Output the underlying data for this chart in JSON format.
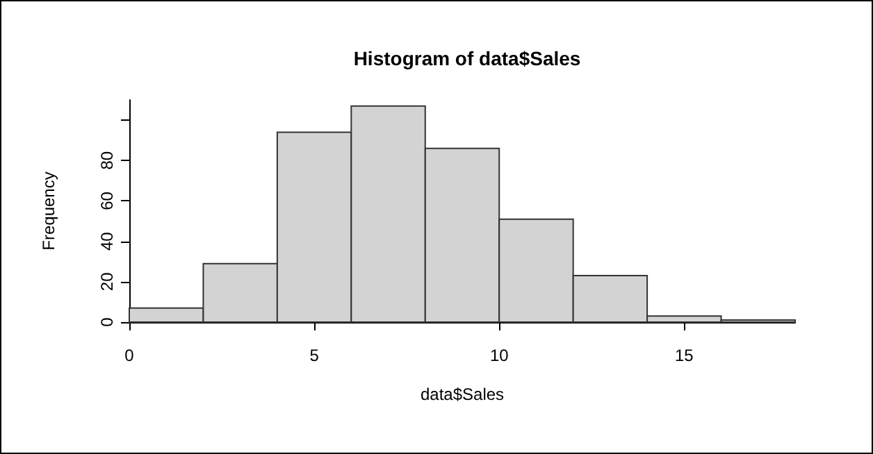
{
  "chart_data": {
    "type": "histogram",
    "title": "Histogram of data$Sales",
    "xlabel": "data$Sales",
    "ylabel": "Frequency",
    "bins": [
      0,
      2,
      4,
      6,
      8,
      10,
      12,
      14,
      16,
      18
    ],
    "values": [
      7,
      29,
      94,
      107,
      86,
      51,
      23,
      3,
      1
    ],
    "color": "#d3d3d3",
    "xlim": [
      0,
      18
    ],
    "xticks": [
      0,
      5,
      10,
      15
    ],
    "ylim": [
      0,
      110
    ],
    "yticks": [
      0,
      20,
      40,
      60,
      80,
      {
        "value": 100,
        "label": null
      }
    ],
    "grid": false
  }
}
